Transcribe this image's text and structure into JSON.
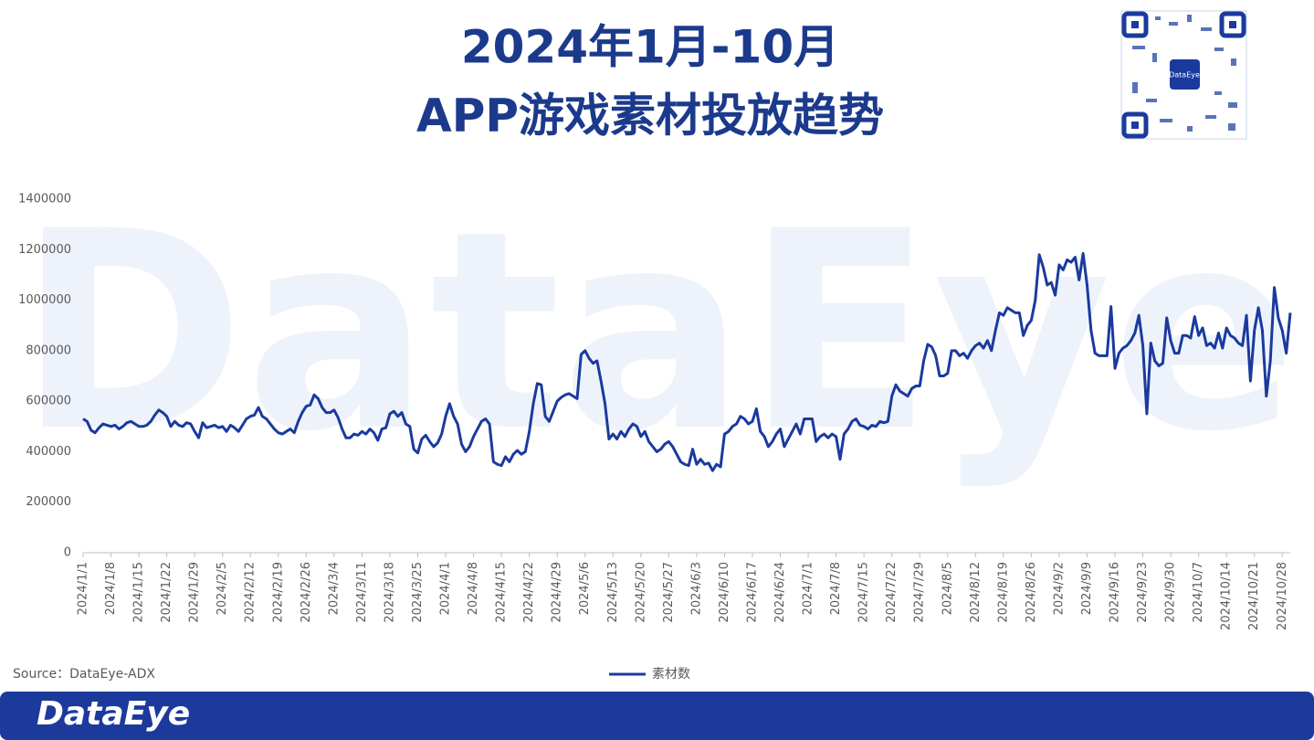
{
  "chart_data": {
    "type": "line",
    "title": "2024年1月-10月",
    "subtitle": "APP游戏素材投放趋势",
    "source": "Source：DataEye-ADX",
    "watermark": "DataEye",
    "footer_logo": "DataEye",
    "qr_label": "DataEye",
    "ylim": [
      0,
      1400000
    ],
    "yticks": [
      0,
      200000,
      400000,
      600000,
      800000,
      1000000,
      1200000,
      1400000
    ],
    "grid": false,
    "legend": "bottom",
    "categories": [
      "2024/1/1",
      null,
      null,
      null,
      null,
      null,
      null,
      "2024/1/8",
      null,
      null,
      null,
      null,
      null,
      null,
      "2024/1/15",
      null,
      null,
      null,
      null,
      null,
      null,
      "2024/1/22",
      null,
      null,
      null,
      null,
      null,
      null,
      "2024/1/29",
      null,
      null,
      null,
      null,
      null,
      null,
      "2024/2/5",
      null,
      null,
      null,
      null,
      null,
      null,
      "2024/2/12",
      null,
      null,
      null,
      null,
      null,
      null,
      "2024/2/19",
      null,
      null,
      null,
      null,
      null,
      null,
      "2024/2/26",
      null,
      null,
      null,
      null,
      null,
      null,
      "2024/3/4",
      null,
      null,
      null,
      null,
      null,
      null,
      "2024/3/11",
      null,
      null,
      null,
      null,
      null,
      null,
      "2024/3/18",
      null,
      null,
      null,
      null,
      null,
      null,
      "2024/3/25",
      null,
      null,
      null,
      null,
      null,
      null,
      "2024/4/1",
      null,
      null,
      null,
      null,
      null,
      null,
      "2024/4/8",
      null,
      null,
      null,
      null,
      null,
      null,
      "2024/4/15",
      null,
      null,
      null,
      null,
      null,
      null,
      "2024/4/22",
      null,
      null,
      null,
      null,
      null,
      null,
      "2024/4/29",
      null,
      null,
      null,
      null,
      null,
      null,
      "2024/5/6",
      null,
      null,
      null,
      null,
      null,
      null,
      "2024/5/13",
      null,
      null,
      null,
      null,
      null,
      null,
      "2024/5/20",
      null,
      null,
      null,
      null,
      null,
      null,
      "2024/5/27",
      null,
      null,
      null,
      null,
      null,
      null,
      "2024/6/3",
      null,
      null,
      null,
      null,
      null,
      null,
      "2024/6/10",
      null,
      null,
      null,
      null,
      null,
      null,
      "2024/6/17",
      null,
      null,
      null,
      null,
      null,
      null,
      "2024/6/24",
      null,
      null,
      null,
      null,
      null,
      null,
      "2024/7/1",
      null,
      null,
      null,
      null,
      null,
      null,
      "2024/7/8",
      null,
      null,
      null,
      null,
      null,
      null,
      "2024/7/15",
      null,
      null,
      null,
      null,
      null,
      null,
      "2024/7/22",
      null,
      null,
      null,
      null,
      null,
      null,
      "2024/7/29",
      null,
      null,
      null,
      null,
      null,
      null,
      "2024/8/5",
      null,
      null,
      null,
      null,
      null,
      null,
      "2024/8/12",
      null,
      null,
      null,
      null,
      null,
      null,
      "2024/8/19",
      null,
      null,
      null,
      null,
      null,
      null,
      "2024/8/26",
      null,
      null,
      null,
      null,
      null,
      null,
      "2024/9/2",
      null,
      null,
      null,
      null,
      null,
      null,
      "2024/9/9",
      null,
      null,
      null,
      null,
      null,
      null,
      "2024/9/16",
      null,
      null,
      null,
      null,
      null,
      null,
      "2024/9/23",
      null,
      null,
      null,
      null,
      null,
      null,
      "2024/9/30",
      null,
      null,
      null,
      null,
      null,
      null,
      "2024/10/7",
      null,
      null,
      null,
      null,
      null,
      null,
      "2024/10/14",
      null,
      null,
      null,
      null,
      null,
      null,
      "2024/10/21",
      null,
      null,
      null,
      null,
      null,
      null,
      "2024/10/28",
      null,
      null
    ],
    "series": [
      {
        "name": "素材数",
        "color": "#1a3a9e",
        "values": [
          530000,
          520000,
          485000,
          475000,
          495000,
          510000,
          505000,
          500000,
          505000,
          490000,
          500000,
          515000,
          520000,
          510000,
          500000,
          500000,
          505000,
          520000,
          545000,
          565000,
          555000,
          540000,
          500000,
          520000,
          505000,
          500000,
          515000,
          510000,
          480000,
          455000,
          515000,
          495000,
          500000,
          505000,
          495000,
          500000,
          480000,
          505000,
          495000,
          480000,
          505000,
          530000,
          540000,
          545000,
          575000,
          540000,
          530000,
          510000,
          490000,
          475000,
          470000,
          480000,
          490000,
          475000,
          520000,
          555000,
          580000,
          585000,
          625000,
          610000,
          575000,
          555000,
          555000,
          565000,
          535000,
          490000,
          455000,
          455000,
          470000,
          465000,
          480000,
          470000,
          490000,
          475000,
          445000,
          490000,
          495000,
          550000,
          560000,
          540000,
          555000,
          510000,
          500000,
          410000,
          395000,
          450000,
          465000,
          440000,
          420000,
          435000,
          470000,
          540000,
          590000,
          540000,
          510000,
          430000,
          400000,
          420000,
          460000,
          490000,
          520000,
          530000,
          510000,
          360000,
          350000,
          345000,
          380000,
          360000,
          390000,
          405000,
          390000,
          400000,
          480000,
          590000,
          670000,
          665000,
          540000,
          520000,
          560000,
          600000,
          615000,
          625000,
          630000,
          620000,
          610000,
          785000,
          800000,
          770000,
          750000,
          760000,
          680000,
          590000,
          450000,
          470000,
          450000,
          480000,
          460000,
          490000,
          510000,
          500000,
          460000,
          480000,
          440000,
          420000,
          400000,
          410000,
          430000,
          440000,
          420000,
          390000,
          360000,
          350000,
          345000,
          410000,
          350000,
          370000,
          350000,
          355000,
          325000,
          350000,
          340000,
          470000,
          480000,
          500000,
          510000,
          540000,
          530000,
          510000,
          520000,
          570000,
          480000,
          460000,
          420000,
          440000,
          470000,
          490000,
          420000,
          450000,
          480000,
          510000,
          470000,
          530000,
          530000,
          530000,
          440000,
          460000,
          470000,
          455000,
          470000,
          460000,
          370000,
          470000,
          490000,
          520000,
          530000,
          505000,
          500000,
          490000,
          505000,
          500000,
          520000,
          515000,
          520000,
          620000,
          665000,
          640000,
          630000,
          620000,
          650000,
          660000,
          660000,
          760000,
          825000,
          815000,
          780000,
          700000,
          700000,
          710000,
          800000,
          800000,
          780000,
          790000,
          770000,
          800000,
          820000,
          830000,
          810000,
          840000,
          800000,
          880000,
          950000,
          940000,
          970000,
          960000,
          950000,
          950000,
          860000,
          900000,
          920000,
          1000000,
          1180000,
          1130000,
          1060000,
          1070000,
          1020000,
          1140000,
          1120000,
          1160000,
          1150000,
          1170000,
          1080000,
          1185000,
          1060000,
          880000,
          790000,
          780000,
          780000,
          780000,
          975000,
          730000,
          790000,
          810000,
          820000,
          840000,
          870000,
          940000,
          820000,
          550000,
          830000,
          760000,
          740000,
          750000,
          930000,
          840000,
          790000,
          790000,
          860000,
          860000,
          850000,
          935000,
          860000,
          890000,
          820000,
          830000,
          810000,
          870000,
          810000,
          890000,
          860000,
          850000,
          830000,
          820000,
          940000,
          680000,
          880000,
          970000,
          880000,
          620000,
          760000,
          1050000,
          930000,
          880000,
          790000,
          950000
        ]
      }
    ]
  }
}
